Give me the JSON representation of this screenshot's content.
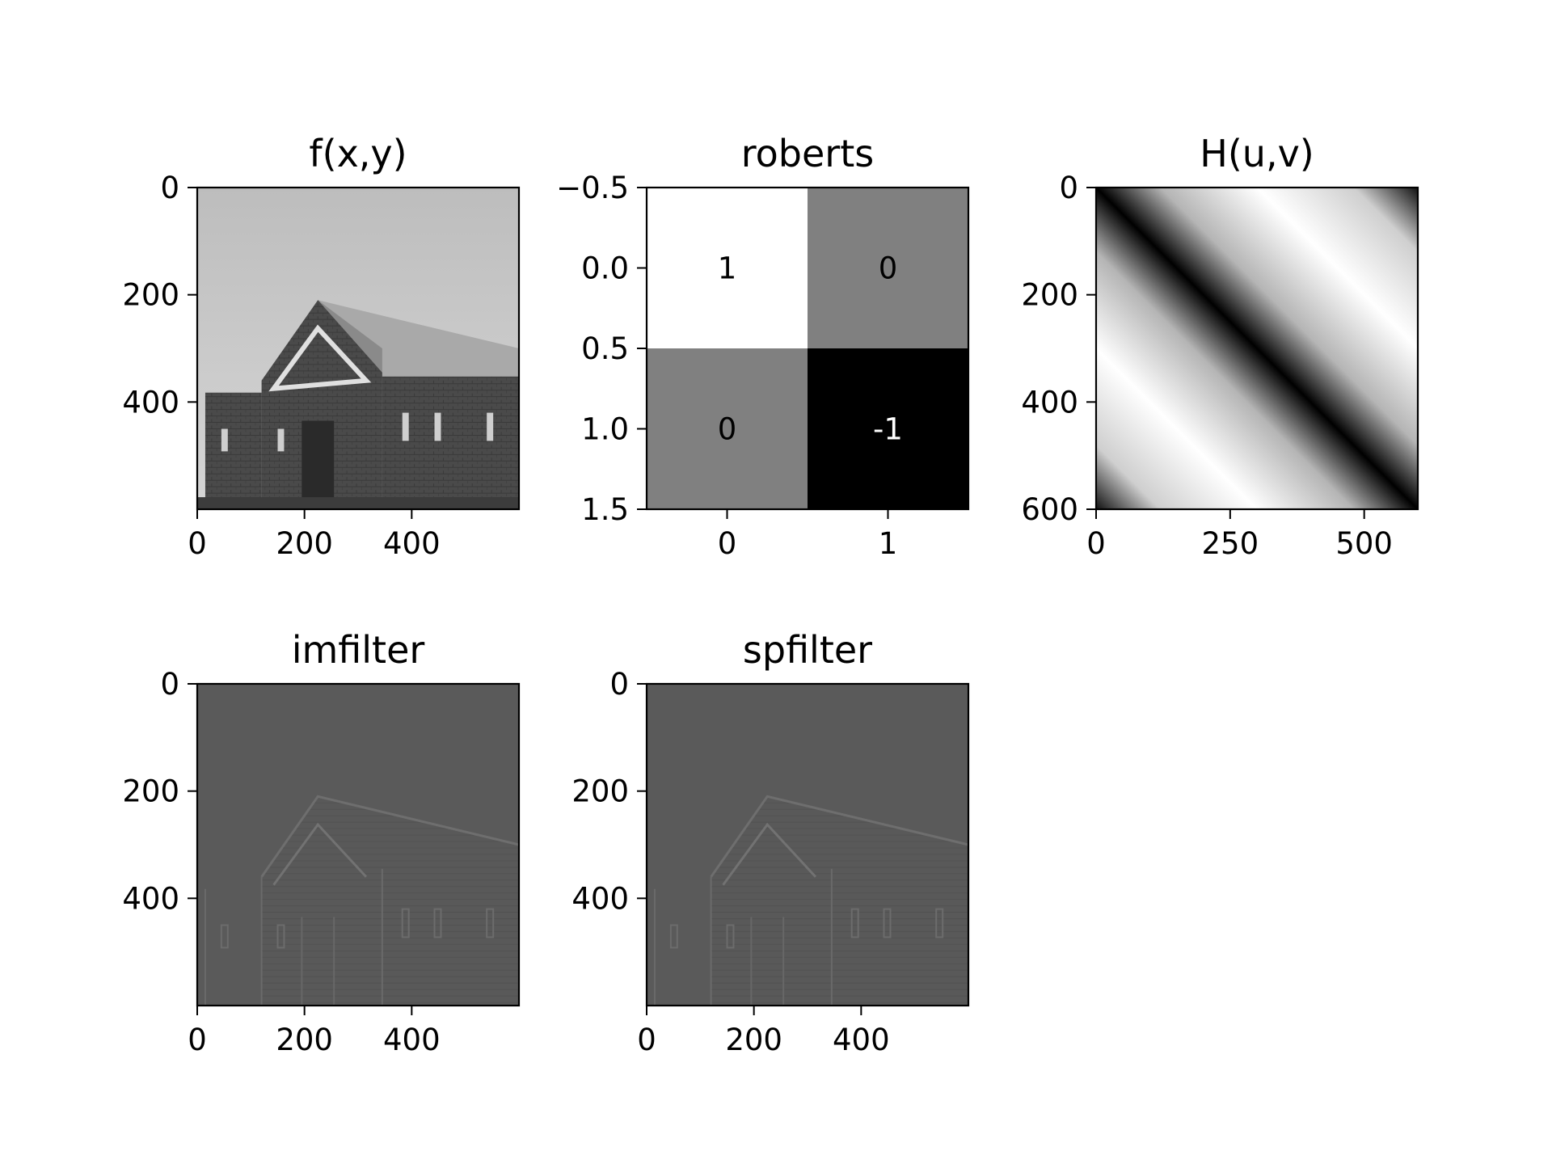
{
  "chart_data": [
    {
      "type": "heatmap",
      "title": "f(x,y)",
      "content": "grayscale photograph of a brick building",
      "xlim": [
        0,
        600
      ],
      "ylim": [
        600,
        0
      ],
      "xticks": [
        0,
        200,
        400
      ],
      "yticks": [
        0,
        200,
        400
      ],
      "colormap": "gray"
    },
    {
      "type": "heatmap",
      "title": "roberts",
      "matrix": [
        [
          1,
          0
        ],
        [
          0,
          -1
        ]
      ],
      "cell_labels": [
        [
          "1",
          "0"
        ],
        [
          "0",
          "-1"
        ]
      ],
      "xlim": [
        -0.5,
        1.5
      ],
      "ylim": [
        1.5,
        -0.5
      ],
      "xticks": [
        "0",
        "1"
      ],
      "yticks": [
        "−0.5",
        "0.0",
        "0.5",
        "1.0",
        "1.5"
      ],
      "colormap": "gray"
    },
    {
      "type": "heatmap",
      "title": "H(u,v)",
      "content": "frequency response magnitude, dark diagonal band",
      "xlim": [
        0,
        600
      ],
      "ylim": [
        600,
        0
      ],
      "xticks": [
        0,
        250,
        500
      ],
      "yticks": [
        0,
        200,
        400,
        600
      ],
      "colormap": "gray"
    },
    {
      "type": "heatmap",
      "title": "imfilter",
      "content": "edge-filtered image",
      "xlim": [
        0,
        600
      ],
      "ylim": [
        600,
        0
      ],
      "xticks": [
        0,
        200,
        400
      ],
      "yticks": [
        0,
        200,
        400
      ],
      "colormap": "gray"
    },
    {
      "type": "heatmap",
      "title": "spfilter",
      "content": "edge-filtered image",
      "xlim": [
        0,
        600
      ],
      "ylim": [
        600,
        0
      ],
      "xticks": [
        0,
        200,
        400
      ],
      "yticks": [
        0,
        200,
        400
      ],
      "colormap": "gray"
    }
  ]
}
